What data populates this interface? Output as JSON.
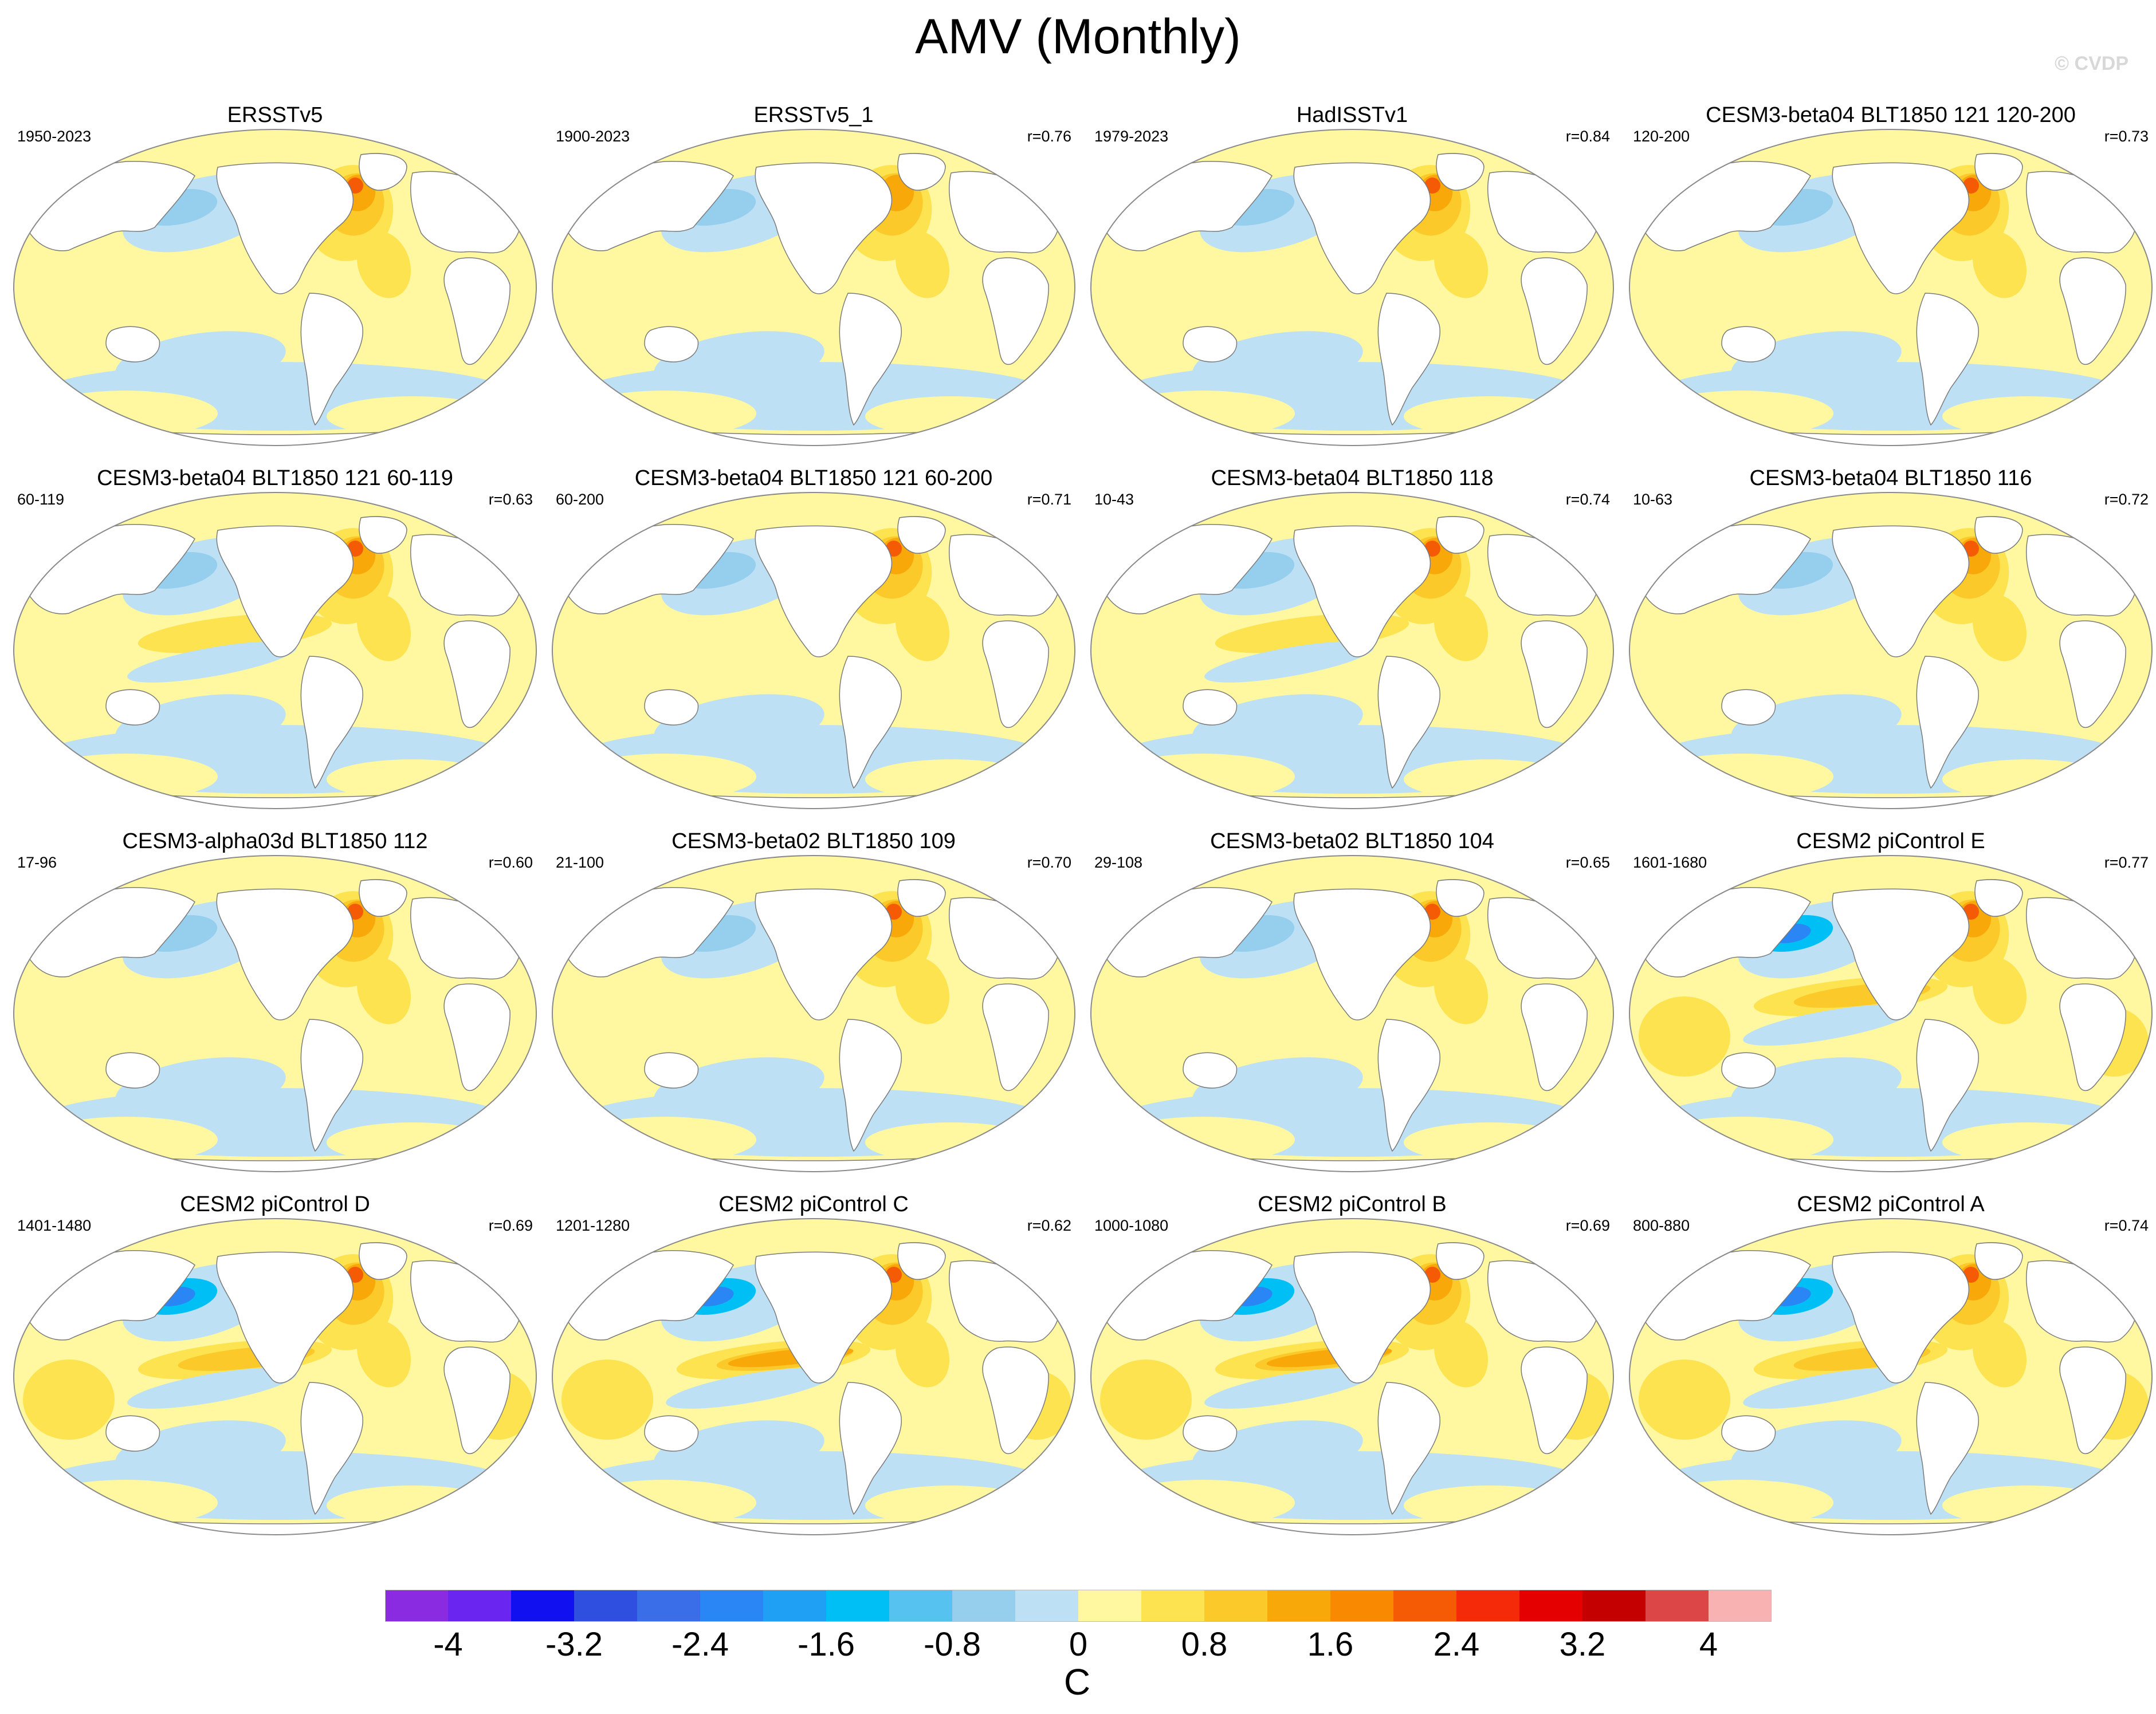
{
  "title": "AMV (Monthly)",
  "copyright": "© CVDP",
  "chart_data": {
    "type": "heatmap",
    "description_kind": "global sea surface temperature regression maps (Robinson projection)",
    "panels": [
      {
        "title": "ERSSTv5",
        "period": "1950-2023",
        "corr": "",
        "pattern": "obs"
      },
      {
        "title": "ERSSTv5_1",
        "period": "1900-2023",
        "corr": "r=0.76",
        "pattern": "obs_weak"
      },
      {
        "title": "HadISSTv1",
        "period": "1979-2023",
        "corr": "r=0.84",
        "pattern": "obs"
      },
      {
        "title": "CESM3-beta04 BLT1850 121 120-200",
        "period": "120-200",
        "corr": "r=0.73",
        "pattern": "model_natl"
      },
      {
        "title": "CESM3-beta04 BLT1850 121 60-119",
        "period": "60-119",
        "corr": "r=0.63",
        "pattern": "model_tropical"
      },
      {
        "title": "CESM3-beta04 BLT1850 121 60-200",
        "period": "60-200",
        "corr": "r=0.71",
        "pattern": "model_natl"
      },
      {
        "title": "CESM3-beta04 BLT1850 118",
        "period": "10-43",
        "corr": "r=0.74",
        "pattern": "model_tropical"
      },
      {
        "title": "CESM3-beta04 BLT1850 116",
        "period": "10-63",
        "corr": "r=0.72",
        "pattern": "model_natl"
      },
      {
        "title": "CESM3-alpha03d BLT1850 112",
        "period": "17-96",
        "corr": "r=0.60",
        "pattern": "model_natl"
      },
      {
        "title": "CESM3-beta02 BLT1850 109",
        "period": "21-100",
        "corr": "r=0.70",
        "pattern": "model_natl"
      },
      {
        "title": "CESM3-beta02 BLT1850 104",
        "period": "29-108",
        "corr": "r=0.65",
        "pattern": "model_natl"
      },
      {
        "title": "CESM2 piControl E",
        "period": "1601-1680",
        "corr": "r=0.77",
        "pattern": "cesm2"
      },
      {
        "title": "CESM2 piControl D",
        "period": "1401-1480",
        "corr": "r=0.69",
        "pattern": "cesm2"
      },
      {
        "title": "CESM2 piControl C",
        "period": "1201-1280",
        "corr": "r=0.62",
        "pattern": "cesm2_strong"
      },
      {
        "title": "CESM2 piControl B",
        "period": "1000-1080",
        "corr": "r=0.69",
        "pattern": "cesm2_strong"
      },
      {
        "title": "CESM2 piControl A",
        "period": "800-880",
        "corr": "r=0.74",
        "pattern": "cesm2"
      }
    ],
    "colorbar": {
      "units": "C",
      "levels": [
        -4.4,
        -4,
        -3.6,
        -3.2,
        -2.8,
        -2.4,
        -2,
        -1.6,
        -1.2,
        -0.8,
        -0.4,
        0,
        0.4,
        0.8,
        1.2,
        1.6,
        2,
        2.4,
        2.8,
        3.2,
        3.6,
        4,
        4.4
      ],
      "tick_labels": [
        "-4",
        "-3.2",
        "-2.4",
        "-1.6",
        "-0.8",
        "0",
        "0.8",
        "1.6",
        "2.4",
        "3.2",
        "4"
      ],
      "colors": [
        "#8a2be2",
        "#6a25f0",
        "#1010f0",
        "#2f4fe0",
        "#3a6de8",
        "#2a85f5",
        "#1fa0f5",
        "#00bff5",
        "#55c2f0",
        "#96cfee",
        "#bee0f4",
        "#fff8a0",
        "#fde350",
        "#fbc92a",
        "#f9a80a",
        "#f98a00",
        "#f55a05",
        "#f42a08",
        "#e50000",
        "#c40000",
        "#dc4646",
        "#f9b2b2"
      ]
    }
  }
}
